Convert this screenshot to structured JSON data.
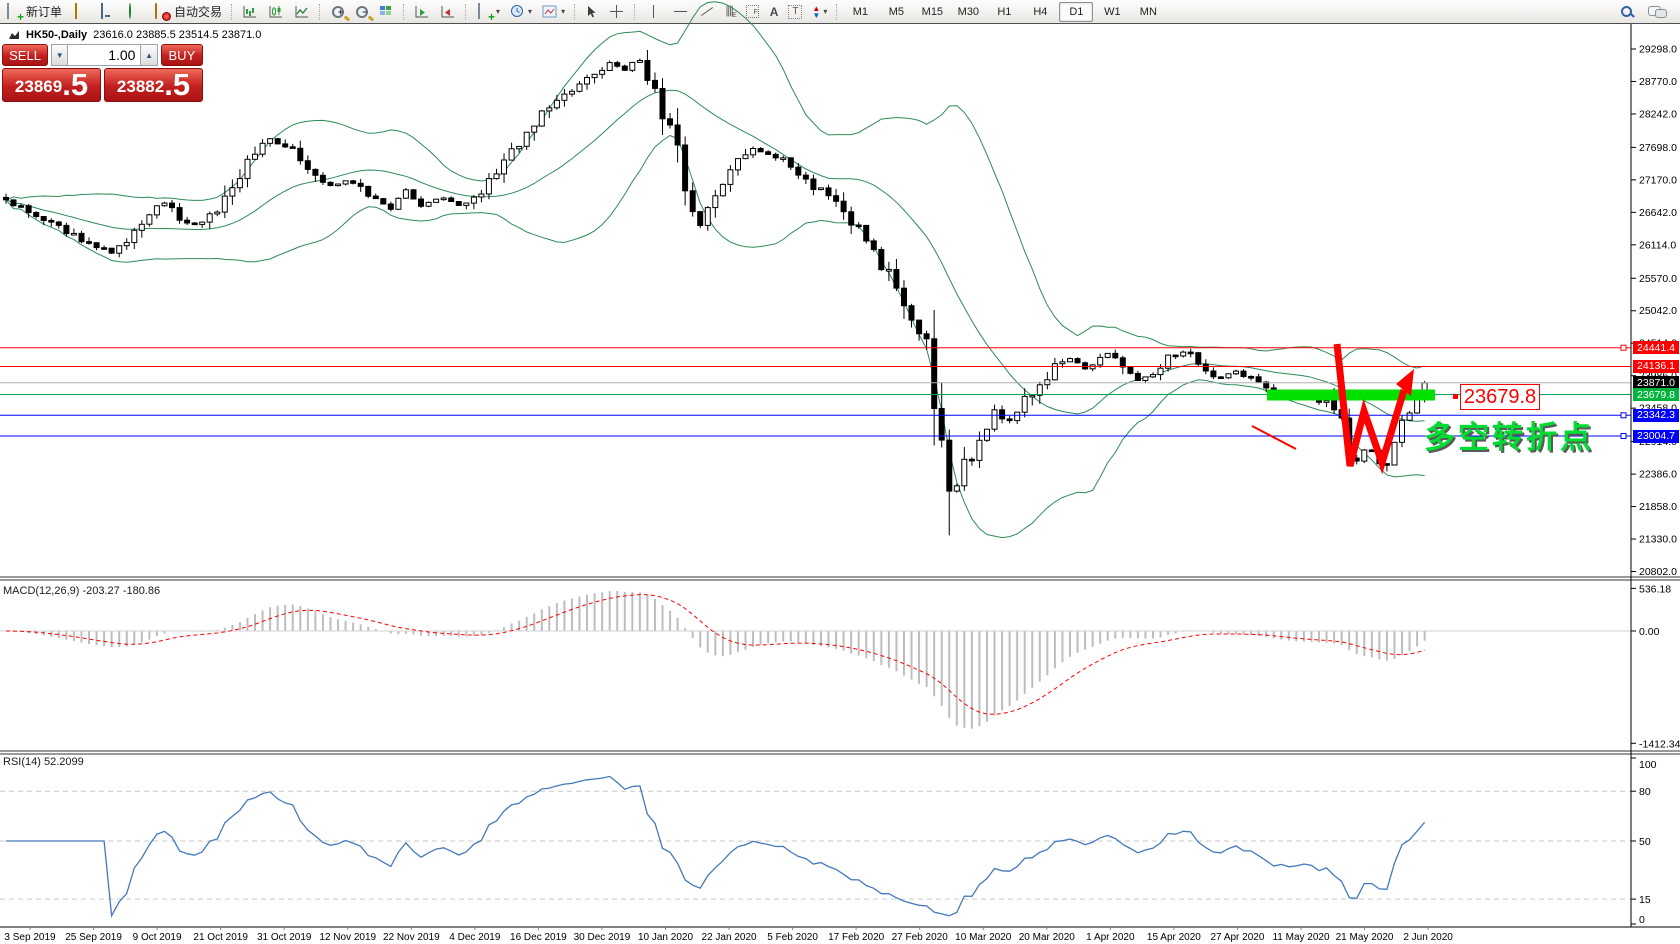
{
  "toolbar": {
    "new_order_label": "新订单",
    "autotrading_label": "自动交易",
    "timeframes": [
      "M1",
      "M5",
      "M15",
      "M30",
      "H1",
      "H4",
      "D1",
      "W1",
      "MN"
    ],
    "active_timeframe": "D1"
  },
  "title": {
    "symbol": "HK50-,Daily",
    "ohlc": "23616.0 23885.5 23514.5 23871.0"
  },
  "trade": {
    "sell_label": "SELL",
    "buy_label": "BUY",
    "volume": "1.00",
    "sell_int": "23869",
    "sell_frac": ".5",
    "buy_int": "23882",
    "buy_frac": ".5"
  },
  "annotations": {
    "callout": "23679.8",
    "cn_text": "多空转折点"
  },
  "macd": {
    "label": "MACD(12,26,9) -203.27 -180.86"
  },
  "rsi": {
    "label": "RSI(14) 52.2099"
  },
  "chart_data": {
    "type": "candlestick",
    "symbol": "HK50-",
    "timeframe": "Daily",
    "ohlc_display": {
      "open": "23616.0",
      "high": "23885.5",
      "low": "23514.5",
      "close": "23871.0"
    },
    "ylim": [
      20802.0,
      29298.0
    ],
    "price_ticks": [
      29298.0,
      28770.0,
      28242.0,
      27698.0,
      27170.0,
      26642.0,
      26114.0,
      25570.0,
      25042.0,
      24514.0,
      23986.0,
      23458.0,
      22914.0,
      22386.0,
      21858.0,
      21330.0,
      20802.0
    ],
    "levels": [
      {
        "value": 24441.4,
        "label": "24441.4",
        "type": "resistance-line",
        "line_color": "#ff0000",
        "label_bg": "#ff0000",
        "handle": true
      },
      {
        "value": 24136.1,
        "label": "24136.1",
        "type": "resistance-line",
        "line_color": "#ff0000",
        "label_bg": "#ff0000",
        "handle": false
      },
      {
        "value": 23871.0,
        "label": "23871.0",
        "type": "current-price",
        "line_color": "#b0b0b0",
        "label_bg": "#000000",
        "handle": false
      },
      {
        "value": 23679.8,
        "label": "23679.8",
        "type": "support-line",
        "line_color": "#00a651",
        "label_bg": "#00b43c",
        "handle": false
      },
      {
        "value": 23342.3,
        "label": "23342.3",
        "type": "support-line",
        "line_color": "#0000ff",
        "label_bg": "#0000ff",
        "handle": true
      },
      {
        "value": 23004.7,
        "label": "23004.7",
        "type": "support-line",
        "line_color": "#0000ff",
        "label_bg": "#0000ff",
        "handle": true
      }
    ],
    "price_path": [
      [
        4,
        26900
      ],
      [
        30,
        26620
      ],
      [
        60,
        26380
      ],
      [
        95,
        26080
      ],
      [
        115,
        25990
      ],
      [
        140,
        26450
      ],
      [
        162,
        26820
      ],
      [
        188,
        26420
      ],
      [
        212,
        26560
      ],
      [
        242,
        27300
      ],
      [
        268,
        27820
      ],
      [
        290,
        27700
      ],
      [
        312,
        27280
      ],
      [
        330,
        27050
      ],
      [
        350,
        27180
      ],
      [
        372,
        26880
      ],
      [
        392,
        26680
      ],
      [
        404,
        27010
      ],
      [
        422,
        26760
      ],
      [
        442,
        26880
      ],
      [
        462,
        26740
      ],
      [
        485,
        27060
      ],
      [
        505,
        27480
      ],
      [
        528,
        27900
      ],
      [
        548,
        28350
      ],
      [
        570,
        28620
      ],
      [
        592,
        28850
      ],
      [
        612,
        29080
      ],
      [
        625,
        28950
      ],
      [
        638,
        29120
      ],
      [
        650,
        28800
      ],
      [
        662,
        28260
      ],
      [
        676,
        27620
      ],
      [
        690,
        26780
      ],
      [
        700,
        26420
      ],
      [
        715,
        26900
      ],
      [
        733,
        27350
      ],
      [
        752,
        27680
      ],
      [
        772,
        27560
      ],
      [
        792,
        27420
      ],
      [
        812,
        27060
      ],
      [
        832,
        26900
      ],
      [
        852,
        26500
      ],
      [
        868,
        26160
      ],
      [
        884,
        25730
      ],
      [
        898,
        25400
      ],
      [
        908,
        25160
      ],
      [
        918,
        24720
      ],
      [
        928,
        24380
      ],
      [
        938,
        23340
      ],
      [
        948,
        22080
      ],
      [
        953,
        21560
      ],
      [
        960,
        22650
      ],
      [
        970,
        22480
      ],
      [
        982,
        23020
      ],
      [
        995,
        23420
      ],
      [
        1008,
        23180
      ],
      [
        1022,
        23560
      ],
      [
        1038,
        23820
      ],
      [
        1055,
        24140
      ],
      [
        1072,
        24280
      ],
      [
        1088,
        24050
      ],
      [
        1105,
        24380
      ],
      [
        1122,
        24210
      ],
      [
        1138,
        23920
      ],
      [
        1155,
        24080
      ],
      [
        1172,
        24320
      ],
      [
        1188,
        24400
      ],
      [
        1205,
        24050
      ],
      [
        1220,
        23960
      ],
      [
        1235,
        24060
      ],
      [
        1248,
        23980
      ],
      [
        1262,
        23820
      ],
      [
        1276,
        23700
      ],
      [
        1290,
        23620
      ],
      [
        1304,
        23680
      ],
      [
        1318,
        23600
      ],
      [
        1332,
        23480
      ],
      [
        1341,
        23300
      ],
      [
        1347,
        22720
      ],
      [
        1354,
        22500
      ],
      [
        1360,
        22560
      ],
      [
        1366,
        22900
      ],
      [
        1372,
        22760
      ],
      [
        1378,
        22560
      ],
      [
        1384,
        22480
      ],
      [
        1390,
        22700
      ],
      [
        1397,
        23000
      ],
      [
        1404,
        23280
      ],
      [
        1411,
        23500
      ],
      [
        1418,
        23680
      ],
      [
        1425,
        23871
      ]
    ],
    "bollinger": {
      "period": 20,
      "deviation": 2,
      "color": "#2e8b57"
    },
    "macd": {
      "params": [
        12,
        26,
        9
      ],
      "values_display": [
        "-203.27",
        "-180.86"
      ],
      "scale_display": [
        "536.18",
        "0.00",
        "-1412.34"
      ],
      "scale": {
        "max": 536.18,
        "zero": 0.0,
        "min": -1412.34
      },
      "hist_color": "#bdbdbd",
      "signal_color": "#ff0000"
    },
    "rsi": {
      "period": 14,
      "value": 52.2099,
      "scale_labels": [
        100,
        80,
        50,
        15,
        0
      ],
      "dashed_levels": [
        80,
        50,
        15
      ],
      "color": "#4379bd"
    },
    "dates": [
      "3 Sep 2019",
      "25 Sep 2019",
      "9 Oct 2019",
      "21 Oct 2019",
      "31 Oct 2019",
      "12 Nov 2019",
      "22 Nov 2019",
      "4 Dec 2019",
      "16 Dec 2019",
      "30 Dec 2019",
      "10 Jan 2020",
      "22 Jan 2020",
      "5 Feb 2020",
      "17 Feb 2020",
      "27 Feb 2020",
      "10 Mar 2020",
      "20 Mar 2020",
      "1 Apr 2020",
      "15 Apr 2020",
      "27 Apr 2020",
      "11 May 2020",
      "21 May 2020",
      "2 Jun 2020"
    ],
    "annotation_colors": {
      "zone": "#00e100",
      "arrow": "#ff0000"
    }
  }
}
